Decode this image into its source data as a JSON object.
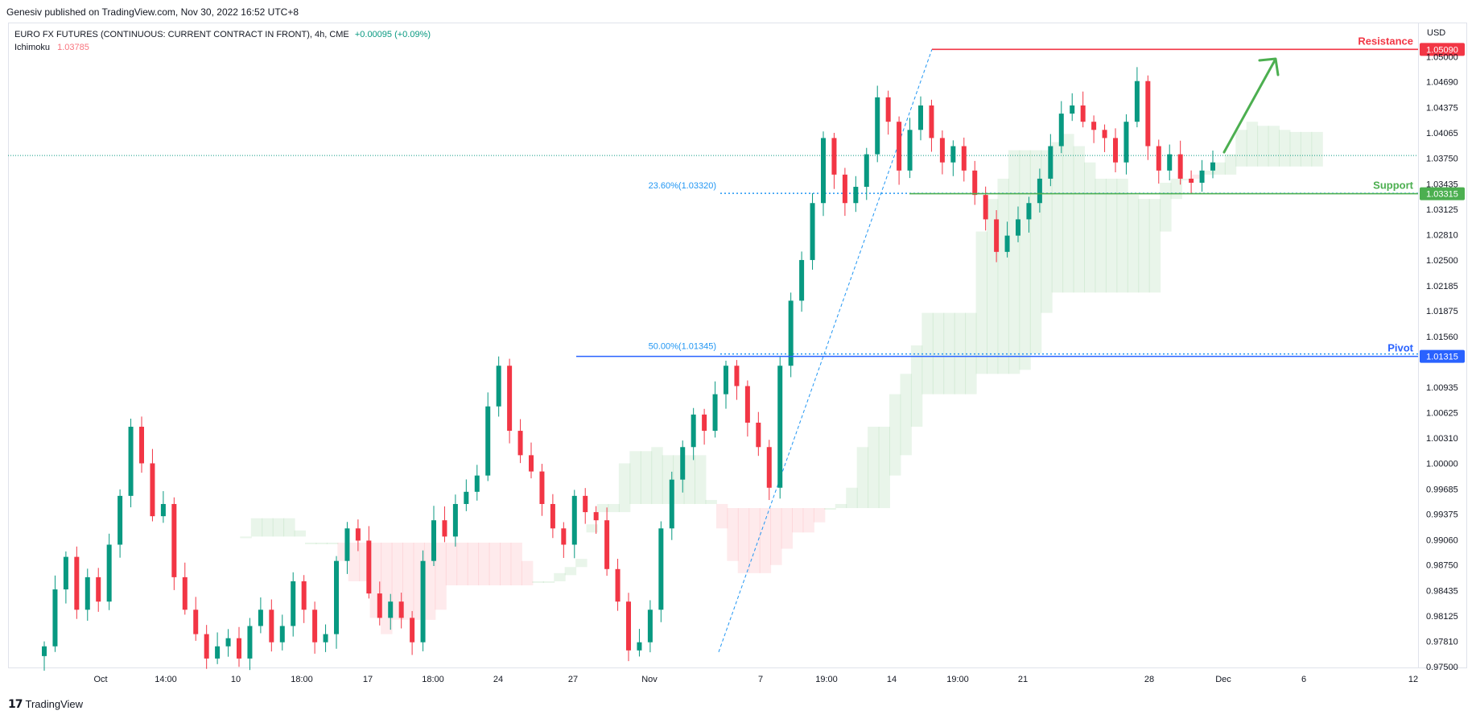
{
  "header": {
    "publisher_line": "Genesiv published on TradingView.com, Nov 30, 2022 16:52 UTC+8"
  },
  "legend": {
    "symbol": "EURO FX FUTURES (CONTINUOUS: CURRENT CONTRACT IN FRONT), 4h, CME",
    "change": "+0.00095 (+0.09%)",
    "indicator_name": "Ichimoku",
    "indicator_value": "1.03785"
  },
  "footer": {
    "brand": "TradingView"
  },
  "colors": {
    "up": "#089981",
    "down": "#f23645",
    "resistance": "#f23645",
    "support": "#4caf50",
    "pivot": "#2962ff",
    "fib": "#2196f3",
    "cloud_bull": "#4caf50",
    "cloud_bear": "#f7525f"
  },
  "chart_data": {
    "type": "candlestick",
    "currency_label": "USD",
    "y_ticks": [
      "1.05000",
      "1.04690",
      "1.04375",
      "1.04065",
      "1.03750",
      "1.03435",
      "1.03125",
      "1.02810",
      "1.02500",
      "1.02185",
      "1.01875",
      "1.01560",
      "1.00935",
      "1.00625",
      "1.00310",
      "1.00000",
      "0.99685",
      "0.99375",
      "0.99060",
      "0.98750",
      "0.98435",
      "0.98125",
      "0.97810",
      "0.97500"
    ],
    "ylim": [
      0.975,
      1.054
    ],
    "x_ticks": [
      "Oct",
      "14:00",
      "10",
      "18:00",
      "17",
      "18:00",
      "24",
      "27",
      "Nov",
      "7",
      "19:00",
      "14",
      "19:00",
      "21",
      "28",
      "Dec",
      "6",
      "12"
    ],
    "levels": [
      {
        "name": "Resistance",
        "value": 1.0509,
        "label": "1.05090"
      },
      {
        "name": "Support",
        "value": 1.03315,
        "label": "1.03315"
      },
      {
        "name": "Pivot",
        "value": 1.01315,
        "label": "1.01315"
      }
    ],
    "fib_levels": [
      {
        "label": "23.60%(1.03320)",
        "value": 1.0332
      },
      {
        "label": "50.00%(1.01345)",
        "value": 1.01345
      }
    ],
    "last_price": 1.03785,
    "close_path": [
      0.9775,
      0.9845,
      0.9885,
      0.982,
      0.986,
      0.983,
      0.99,
      0.996,
      1.0045,
      1.0,
      0.9935,
      0.995,
      0.986,
      0.982,
      0.979,
      0.976,
      0.9775,
      0.9785,
      0.976,
      0.98,
      0.982,
      0.978,
      0.98,
      0.9855,
      0.982,
      0.978,
      0.979,
      0.988,
      0.992,
      0.9905,
      0.984,
      0.981,
      0.983,
      0.981,
      0.978,
      0.988,
      0.993,
      0.991,
      0.995,
      0.9965,
      0.9985,
      1.007,
      1.012,
      1.004,
      1.001,
      0.999,
      0.995,
      0.992,
      0.99,
      0.996,
      0.994,
      0.993,
      0.987,
      0.983,
      0.977,
      0.978,
      0.982,
      0.992,
      0.998,
      1.002,
      1.006,
      1.004,
      1.0085,
      1.012,
      1.0095,
      1.005,
      1.002,
      0.997,
      1.012,
      1.02,
      1.025,
      1.032,
      1.04,
      1.0355,
      1.032,
      1.034,
      1.038,
      1.045,
      1.042,
      1.036,
      1.041,
      1.044,
      1.04,
      1.037,
      1.039,
      1.036,
      1.033,
      1.03,
      1.026,
      1.028,
      1.03,
      1.032,
      1.035,
      1.039,
      1.043,
      1.044,
      1.042,
      1.041,
      1.04,
      1.037,
      1.042,
      1.047,
      1.039,
      1.036,
      1.038,
      1.035,
      1.0345,
      1.036,
      1.037
    ]
  }
}
